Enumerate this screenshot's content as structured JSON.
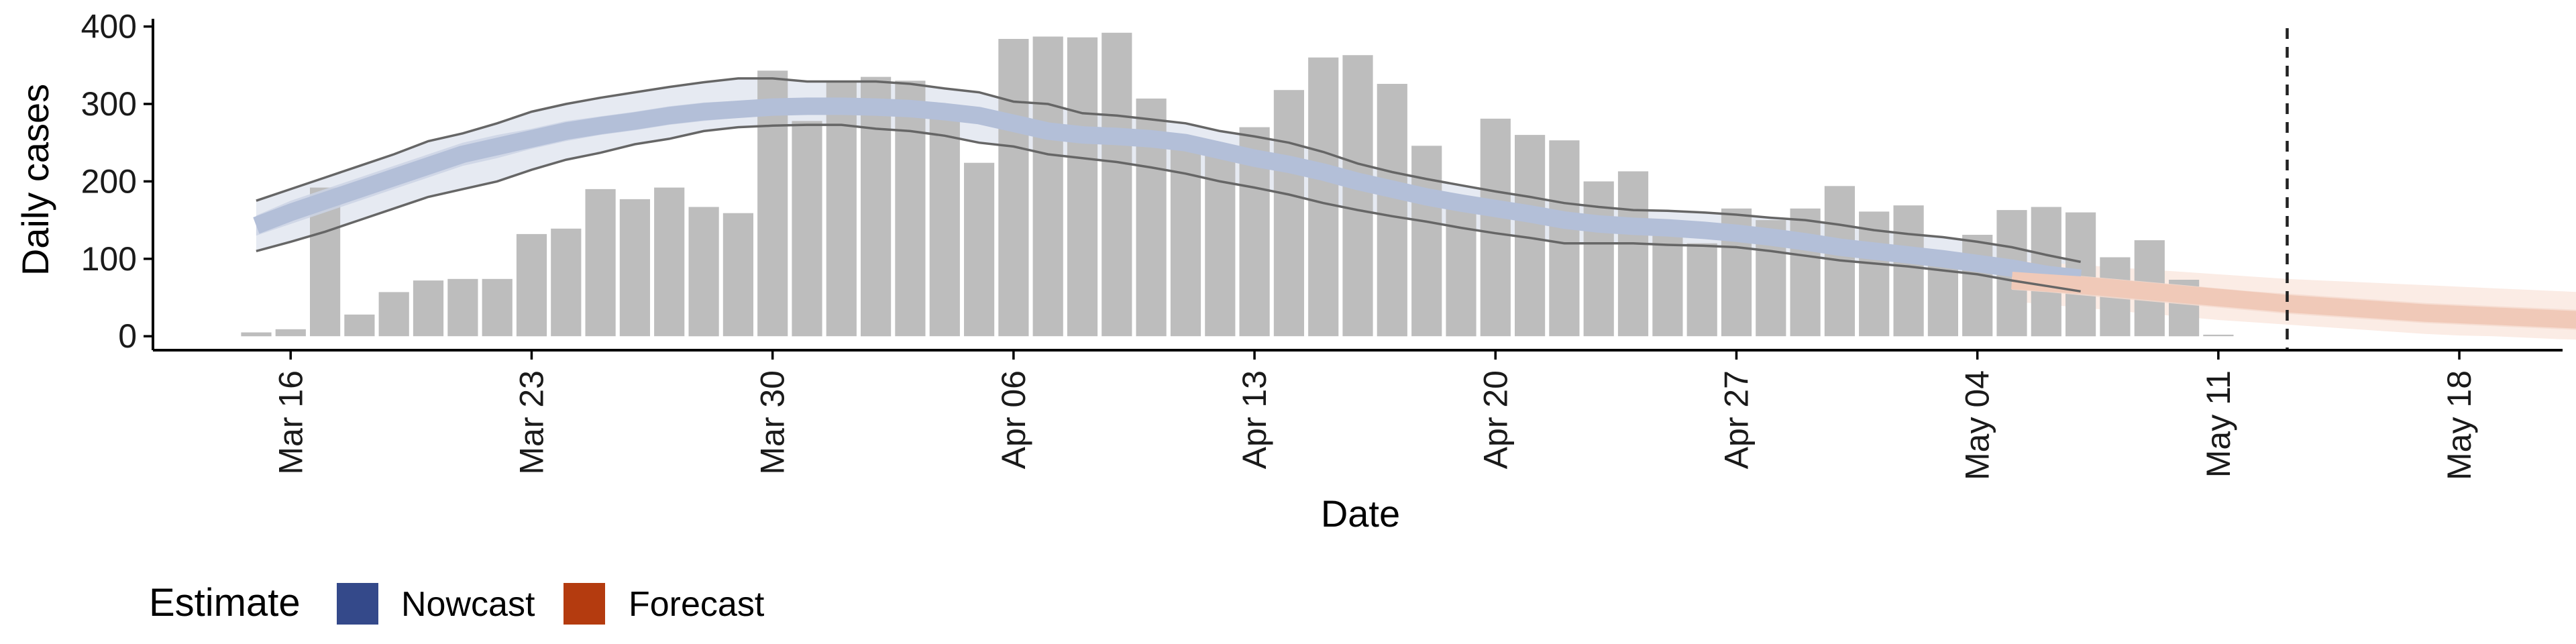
{
  "chart_data": {
    "type": "bar",
    "xlabel": "Date",
    "ylabel": "Daily cases",
    "y_ticks": [
      0,
      100,
      200,
      300,
      400
    ],
    "ylim": [
      -18,
      410
    ],
    "xlim": [
      "2020-03-12",
      "2020-05-21"
    ],
    "x_ticks": [
      {
        "date": "2020-03-16",
        "label": "Mar 16"
      },
      {
        "date": "2020-03-23",
        "label": "Mar 23"
      },
      {
        "date": "2020-03-30",
        "label": "Mar 30"
      },
      {
        "date": "2020-04-06",
        "label": "Apr 06"
      },
      {
        "date": "2020-04-13",
        "label": "Apr 13"
      },
      {
        "date": "2020-04-20",
        "label": "Apr 20"
      },
      {
        "date": "2020-04-27",
        "label": "Apr 27"
      },
      {
        "date": "2020-05-04",
        "label": "May 04"
      },
      {
        "date": "2020-05-11",
        "label": "May 11"
      },
      {
        "date": "2020-05-18",
        "label": "May 18"
      }
    ],
    "bars": {
      "start_date": "2020-03-15",
      "values": [
        5,
        9,
        192,
        28,
        57,
        72,
        74,
        74,
        132,
        139,
        190,
        177,
        192,
        167,
        159,
        343,
        278,
        330,
        335,
        330,
        283,
        224,
        384,
        387,
        386,
        392,
        307,
        248,
        245,
        270,
        318,
        360,
        363,
        326,
        246,
        180,
        281,
        260,
        253,
        200,
        213,
        135,
        120,
        165,
        150,
        165,
        194,
        161,
        169,
        95,
        131,
        163,
        167,
        160,
        102,
        124,
        73,
        2
      ]
    },
    "cutoff_date": "2020-05-13",
    "nowcast": {
      "start_date": "2020-03-15",
      "median": [
        143,
        160,
        175,
        190,
        205,
        220,
        235,
        245,
        255,
        265,
        272,
        278,
        285,
        290,
        293,
        296,
        297,
        297,
        296,
        294,
        290,
        285,
        275,
        265,
        260,
        258,
        255,
        250,
        240,
        230,
        222,
        212,
        200,
        190,
        180,
        172,
        165,
        158,
        150,
        145,
        142,
        140,
        137,
        133,
        128,
        122,
        115,
        110,
        105,
        100,
        94,
        88,
        80,
        75
      ],
      "ci50_lower": [
        130,
        145,
        160,
        175,
        190,
        205,
        220,
        230,
        242,
        252,
        260,
        266,
        273,
        278,
        282,
        285,
        286,
        286,
        285,
        283,
        279,
        274,
        264,
        254,
        249,
        247,
        244,
        239,
        229,
        219,
        211,
        201,
        189,
        179,
        170,
        162,
        155,
        148,
        140,
        136,
        133,
        131,
        128,
        124,
        119,
        113,
        106,
        101,
        96,
        91,
        85,
        79,
        71,
        66
      ],
      "ci50_upper": [
        156,
        175,
        190,
        205,
        220,
        235,
        250,
        260,
        268,
        278,
        284,
        290,
        297,
        302,
        304,
        307,
        308,
        308,
        307,
        305,
        301,
        296,
        286,
        276,
        271,
        269,
        266,
        261,
        251,
        241,
        233,
        223,
        211,
        201,
        190,
        182,
        175,
        168,
        160,
        154,
        151,
        149,
        146,
        142,
        137,
        131,
        124,
        119,
        114,
        109,
        103,
        97,
        89,
        84
      ],
      "ci90_lower": [
        110,
        122,
        135,
        150,
        165,
        180,
        190,
        200,
        215,
        228,
        237,
        248,
        255,
        265,
        270,
        272,
        273,
        273,
        268,
        265,
        259,
        250,
        245,
        235,
        230,
        225,
        218,
        210,
        200,
        192,
        183,
        172,
        163,
        155,
        148,
        140,
        133,
        127,
        120,
        120,
        120,
        118,
        117,
        115,
        110,
        104,
        98,
        94,
        90,
        85,
        80,
        72,
        65,
        58
      ],
      "ci90_upper": [
        175,
        190,
        205,
        220,
        235,
        252,
        262,
        275,
        290,
        300,
        308,
        315,
        322,
        328,
        333,
        333,
        329,
        329,
        329,
        326,
        320,
        315,
        303,
        300,
        288,
        285,
        280,
        275,
        265,
        258,
        250,
        238,
        223,
        212,
        203,
        195,
        187,
        180,
        172,
        167,
        163,
        162,
        160,
        157,
        153,
        150,
        144,
        137,
        132,
        128,
        122,
        115,
        105,
        96
      ]
    },
    "forecast": {
      "start_date": "2020-05-05",
      "median": [
        72,
        69,
        66,
        62,
        58,
        54,
        50,
        46,
        42,
        39,
        36,
        33,
        30,
        28,
        26,
        24,
        22,
        20,
        18,
        16
      ],
      "ci50_lower": [
        60,
        57,
        53,
        49,
        45,
        41,
        37,
        33,
        29,
        26,
        23,
        20,
        17,
        15,
        13,
        11,
        9,
        7,
        5,
        3
      ],
      "ci50_upper": [
        84,
        81,
        78,
        74,
        70,
        66,
        62,
        58,
        55,
        52,
        49,
        46,
        43,
        41,
        39,
        37,
        35,
        33,
        31,
        29
      ],
      "ci90_lower": [
        45,
        41,
        37,
        33,
        29,
        25,
        21,
        18,
        15,
        12,
        9,
        6,
        3,
        1,
        0,
        -2,
        -4,
        -5,
        -6,
        -7
      ],
      "ci90_upper": [
        98,
        95,
        92,
        89,
        86,
        83,
        80,
        77,
        74,
        72,
        70,
        68,
        66,
        64,
        62,
        60,
        58,
        56,
        54,
        52
      ]
    },
    "legend": {
      "title": "Estimate",
      "placement": "bottom-left",
      "entries": [
        {
          "label": "Nowcast",
          "color": "#34498a"
        },
        {
          "label": "Forecast",
          "color": "#b43b0f"
        }
      ]
    },
    "colors": {
      "bars": "#bdbdbd",
      "nowcast_median": "#b3bfd8",
      "nowcast_ci50": "#cbd3e5",
      "nowcast_ci90": "#e6eaf2",
      "nowcast_ci90_lines": "#666666",
      "forecast_median": "#f0c9b8",
      "forecast_ci50": "#f5dbcf",
      "forecast_ci90": "#fbece5",
      "cutoff_line": "#222222",
      "axis": "#000000"
    }
  }
}
